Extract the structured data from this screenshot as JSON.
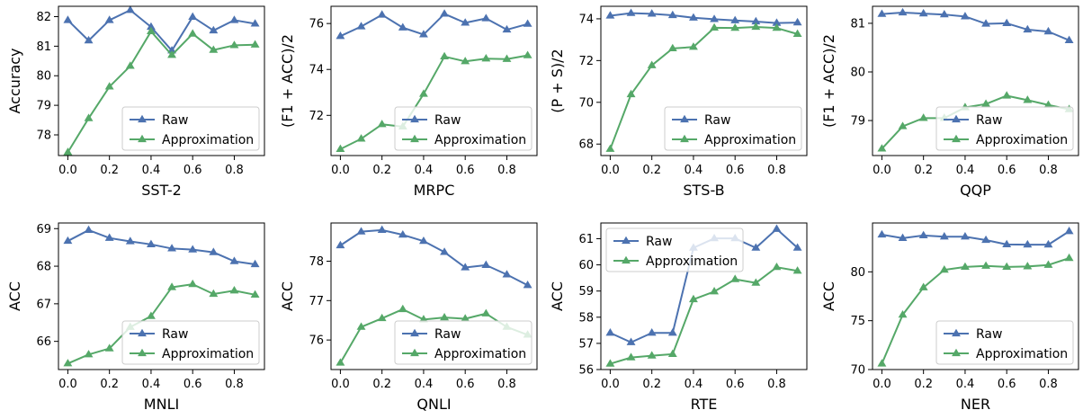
{
  "colors": {
    "raw": "#4c72b0",
    "approximation": "#55a868"
  },
  "chart_data": [
    {
      "type": "line",
      "xlabel": "SST-2",
      "ylabel": "Accuracy",
      "x": [
        0.0,
        0.1,
        0.2,
        0.3,
        0.4,
        0.5,
        0.6,
        0.7,
        0.8,
        0.9
      ],
      "xlim": [
        -0.045,
        0.945
      ],
      "ylim": [
        77.3,
        82.35
      ],
      "xticks": [
        0.0,
        0.2,
        0.4,
        0.6,
        0.8
      ],
      "yticks": [
        78,
        79,
        80,
        81,
        82
      ],
      "xtick_labels": [
        "0.0",
        "0.2",
        "0.4",
        "0.6",
        "0.8"
      ],
      "ytick_labels": [
        "78",
        "79",
        "80",
        "81",
        "82"
      ],
      "legend": "lower-right",
      "series": [
        {
          "name": "Raw",
          "values": [
            81.88,
            81.19,
            81.88,
            82.22,
            81.65,
            80.85,
            81.99,
            81.53,
            81.88,
            81.76
          ]
        },
        {
          "name": "Approximation",
          "values": [
            77.41,
            78.56,
            79.63,
            80.33,
            81.5,
            80.7,
            81.42,
            80.87,
            81.03,
            81.05
          ]
        }
      ]
    },
    {
      "type": "line",
      "xlabel": "MRPC",
      "ylabel": "(F1 + ACC)/2",
      "x": [
        0.0,
        0.1,
        0.2,
        0.3,
        0.4,
        0.5,
        0.6,
        0.7,
        0.8,
        0.9
      ],
      "xlim": [
        -0.045,
        0.945
      ],
      "ylim": [
        70.25,
        76.75
      ],
      "xticks": [
        0.0,
        0.2,
        0.4,
        0.6,
        0.8
      ],
      "yticks": [
        72,
        74,
        76
      ],
      "xtick_labels": [
        "0.0",
        "0.2",
        "0.4",
        "0.6",
        "0.8"
      ],
      "ytick_labels": [
        "72",
        "74",
        "76"
      ],
      "legend": "lower-right",
      "series": [
        {
          "name": "Raw",
          "values": [
            75.45,
            75.87,
            76.38,
            75.82,
            75.52,
            76.42,
            76.03,
            76.22,
            75.73,
            75.98
          ]
        },
        {
          "name": "Approximation",
          "values": [
            70.53,
            70.98,
            71.61,
            71.51,
            72.93,
            74.56,
            74.35,
            74.47,
            74.45,
            74.61
          ]
        }
      ]
    },
    {
      "type": "line",
      "xlabel": "STS-B",
      "ylabel": "(P + S)/2",
      "x": [
        0.0,
        0.1,
        0.2,
        0.3,
        0.4,
        0.5,
        0.6,
        0.7,
        0.8,
        0.9
      ],
      "xlim": [
        -0.045,
        0.945
      ],
      "ylim": [
        67.45,
        74.6
      ],
      "xticks": [
        0.0,
        0.2,
        0.4,
        0.6,
        0.8
      ],
      "yticks": [
        68,
        70,
        72,
        74
      ],
      "xtick_labels": [
        "0.0",
        "0.2",
        "0.4",
        "0.6",
        "0.8"
      ],
      "ytick_labels": [
        "68",
        "70",
        "72",
        "74"
      ],
      "legend": "lower-right",
      "series": [
        {
          "name": "Raw",
          "values": [
            74.15,
            74.27,
            74.24,
            74.17,
            74.05,
            73.98,
            73.92,
            73.87,
            73.8,
            73.82
          ]
        },
        {
          "name": "Approximation",
          "values": [
            67.76,
            70.38,
            71.77,
            72.58,
            72.65,
            73.57,
            73.56,
            73.61,
            73.56,
            73.27
          ]
        }
      ]
    },
    {
      "type": "line",
      "xlabel": "QQP",
      "ylabel": "(F1 + ACC)/2",
      "x": [
        0.0,
        0.1,
        0.2,
        0.3,
        0.4,
        0.5,
        0.6,
        0.7,
        0.8,
        0.9
      ],
      "xlim": [
        -0.045,
        0.945
      ],
      "ylim": [
        78.28,
        81.35
      ],
      "xticks": [
        0.0,
        0.2,
        0.4,
        0.6,
        0.8
      ],
      "yticks": [
        79,
        80,
        81
      ],
      "xtick_labels": [
        "0.0",
        "0.2",
        "0.4",
        "0.6",
        "0.8"
      ],
      "ytick_labels": [
        "79",
        "80",
        "81"
      ],
      "legend": "lower-right",
      "series": [
        {
          "name": "Raw",
          "values": [
            81.19,
            81.22,
            81.2,
            81.18,
            81.14,
            80.99,
            81.0,
            80.87,
            80.83,
            80.65
          ]
        },
        {
          "name": "Approximation",
          "values": [
            78.42,
            78.88,
            79.05,
            79.05,
            79.27,
            79.34,
            79.51,
            79.42,
            79.32,
            79.23
          ]
        }
      ]
    },
    {
      "type": "line",
      "xlabel": "MNLI",
      "ylabel": "ACC",
      "x": [
        0.0,
        0.1,
        0.2,
        0.3,
        0.4,
        0.5,
        0.6,
        0.7,
        0.8,
        0.9
      ],
      "xlim": [
        -0.045,
        0.945
      ],
      "ylim": [
        65.25,
        69.15
      ],
      "xticks": [
        0.0,
        0.2,
        0.4,
        0.6,
        0.8
      ],
      "yticks": [
        66,
        67,
        68,
        69
      ],
      "xtick_labels": [
        "0.0",
        "0.2",
        "0.4",
        "0.6",
        "0.8"
      ],
      "ytick_labels": [
        "66",
        "67",
        "68",
        "69"
      ],
      "legend": "lower-right",
      "series": [
        {
          "name": "Raw",
          "values": [
            68.67,
            68.96,
            68.75,
            68.66,
            68.58,
            68.47,
            68.44,
            68.37,
            68.13,
            68.05
          ]
        },
        {
          "name": "Approximation",
          "values": [
            65.41,
            65.65,
            65.81,
            66.38,
            66.67,
            67.44,
            67.52,
            67.26,
            67.35,
            67.24
          ]
        }
      ]
    },
    {
      "type": "line",
      "xlabel": "QNLI",
      "ylabel": "ACC",
      "x": [
        0.0,
        0.1,
        0.2,
        0.3,
        0.4,
        0.5,
        0.6,
        0.7,
        0.8,
        0.9
      ],
      "xlim": [
        -0.045,
        0.945
      ],
      "ylim": [
        75.25,
        78.97
      ],
      "xticks": [
        0.0,
        0.2,
        0.4,
        0.6,
        0.8
      ],
      "yticks": [
        76,
        77,
        78
      ],
      "xtick_labels": [
        "0.0",
        "0.2",
        "0.4",
        "0.6",
        "0.8"
      ],
      "ytick_labels": [
        "76",
        "77",
        "78"
      ],
      "legend": "lower-right",
      "series": [
        {
          "name": "Raw",
          "values": [
            78.4,
            78.75,
            78.79,
            78.67,
            78.51,
            78.23,
            77.84,
            77.9,
            77.66,
            77.39
          ]
        },
        {
          "name": "Approximation",
          "values": [
            75.42,
            76.33,
            76.55,
            76.78,
            76.52,
            76.57,
            76.54,
            76.67,
            76.33,
            76.13
          ]
        }
      ]
    },
    {
      "type": "line",
      "xlabel": "RTE",
      "ylabel": "ACC",
      "x": [
        0.0,
        0.1,
        0.2,
        0.3,
        0.4,
        0.5,
        0.6,
        0.7,
        0.8,
        0.9
      ],
      "xlim": [
        -0.045,
        0.945
      ],
      "ylim": [
        56.0,
        61.6
      ],
      "xticks": [
        0.0,
        0.2,
        0.4,
        0.6,
        0.8
      ],
      "yticks": [
        56,
        57,
        58,
        59,
        60,
        61
      ],
      "xtick_labels": [
        "0.0",
        "0.2",
        "0.4",
        "0.6",
        "0.8"
      ],
      "ytick_labels": [
        "56",
        "57",
        "58",
        "59",
        "60",
        "61"
      ],
      "legend": "upper-left",
      "series": [
        {
          "name": "Raw",
          "values": [
            57.4,
            57.04,
            57.4,
            57.4,
            60.65,
            61.01,
            61.01,
            60.65,
            61.37,
            60.65
          ]
        },
        {
          "name": "Approximation",
          "values": [
            56.22,
            56.46,
            56.53,
            56.59,
            58.68,
            58.98,
            59.45,
            59.31,
            59.91,
            59.77
          ]
        }
      ]
    },
    {
      "type": "line",
      "xlabel": "NER",
      "ylabel": "ACC",
      "x": [
        0.0,
        0.1,
        0.2,
        0.3,
        0.4,
        0.5,
        0.6,
        0.7,
        0.8,
        0.9
      ],
      "xlim": [
        -0.045,
        0.945
      ],
      "ylim": [
        70.0,
        85.0
      ],
      "xticks": [
        0.0,
        0.2,
        0.4,
        0.6,
        0.8
      ],
      "yticks": [
        70,
        75,
        80
      ],
      "xtick_labels": [
        "0.0",
        "0.2",
        "0.4",
        "0.6",
        "0.8"
      ],
      "ytick_labels": [
        "70",
        "75",
        "80"
      ],
      "legend": "lower-right",
      "series": [
        {
          "name": "Raw",
          "values": [
            83.8,
            83.45,
            83.72,
            83.6,
            83.6,
            83.25,
            82.8,
            82.78,
            82.78,
            84.15
          ]
        },
        {
          "name": "Approximation",
          "values": [
            70.6,
            75.6,
            78.4,
            80.2,
            80.5,
            80.6,
            80.5,
            80.55,
            80.7,
            81.4
          ]
        }
      ]
    }
  ]
}
